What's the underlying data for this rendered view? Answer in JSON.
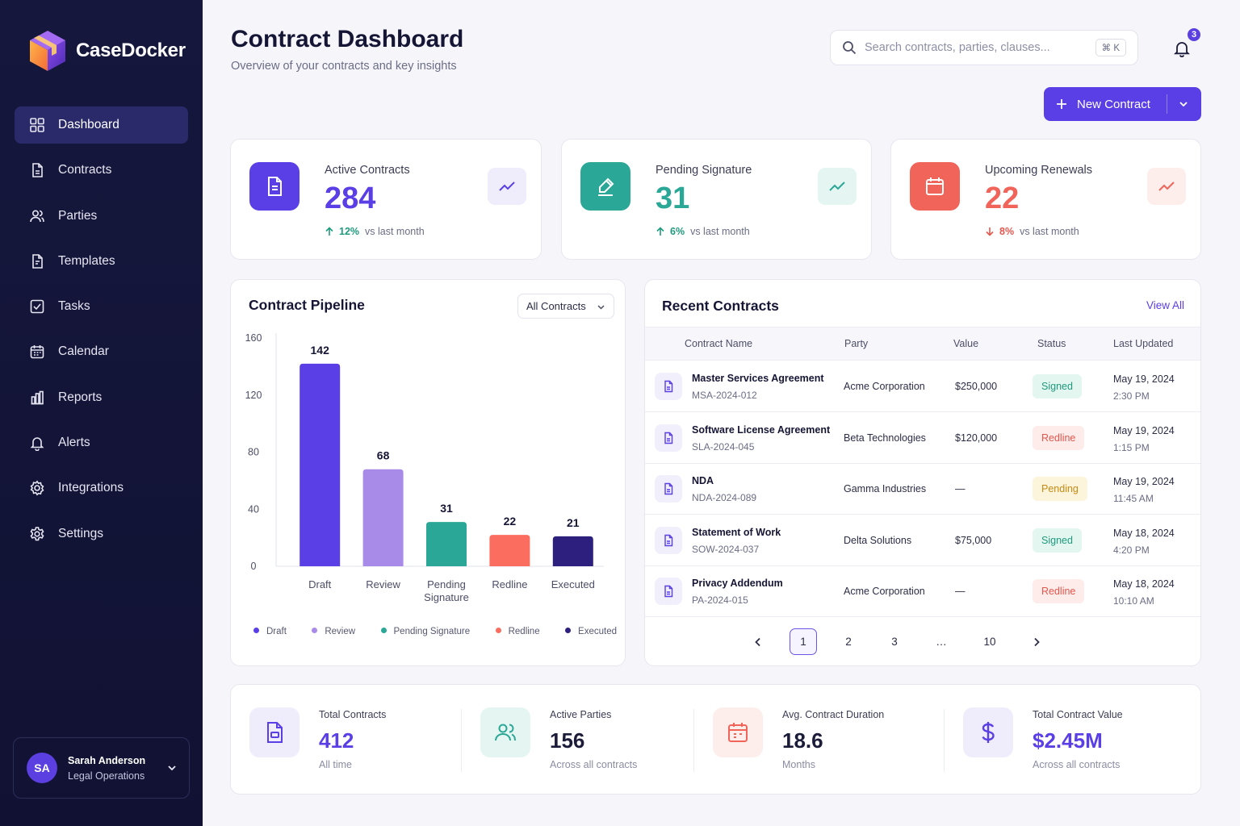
{
  "brand": {
    "name": "CaseDocker"
  },
  "sidebar": {
    "items": [
      {
        "label": "Dashboard",
        "icon": "grid-icon",
        "active": true
      },
      {
        "label": "Contracts",
        "icon": "document-icon"
      },
      {
        "label": "Parties",
        "icon": "users-icon"
      },
      {
        "label": "Templates",
        "icon": "template-icon"
      },
      {
        "label": "Tasks",
        "icon": "checkbox-icon"
      },
      {
        "label": "Calendar",
        "icon": "calendar-icon"
      },
      {
        "label": "Reports",
        "icon": "reports-icon"
      },
      {
        "label": "Alerts",
        "icon": "bell-icon"
      },
      {
        "label": "Integrations",
        "icon": "integrations-icon"
      },
      {
        "label": "Settings",
        "icon": "gear-icon"
      }
    ]
  },
  "user": {
    "initials": "SA",
    "name": "Sarah Anderson",
    "role": "Legal Operations"
  },
  "header": {
    "title": "Contract Dashboard",
    "subtitle": "Overview of your contracts and key insights",
    "search_placeholder": "Search contracts, parties, clauses...",
    "search_shortcut": "⌘ K",
    "notification_count": "3",
    "new_button_label": "New Contract"
  },
  "stats": [
    {
      "label": "Active Contracts",
      "value": "284",
      "delta": "12%",
      "delta_direction": "up",
      "delta_text": "vs last month",
      "color": "#5a3ee6"
    },
    {
      "label": "Pending Signature",
      "value": "31",
      "delta": "6%",
      "delta_direction": "up",
      "delta_text": "vs last month",
      "color": "#2aa796"
    },
    {
      "label": "Upcoming Renewals",
      "value": "22",
      "delta": "8%",
      "delta_direction": "down",
      "delta_text": "vs last month",
      "color": "#f0645a"
    }
  ],
  "pipeline": {
    "title": "Contract Pipeline",
    "filter": "All Contracts"
  },
  "chart_data": {
    "type": "bar",
    "title": "Contract Pipeline",
    "categories": [
      "Draft",
      "Review",
      "Pending Signature",
      "Redline",
      "Executed"
    ],
    "values": [
      142,
      68,
      31,
      22,
      21
    ],
    "colors": [
      "#5a3ee6",
      "#a88be8",
      "#2aa796",
      "#fb6d5e",
      "#2c1f7e"
    ],
    "yticks": [
      0,
      40,
      80,
      120,
      160
    ],
    "ylim": [
      0,
      160
    ],
    "legend": [
      "Draft",
      "Review",
      "Pending Signature",
      "Redline",
      "Executed"
    ],
    "legend_position": "bottom",
    "grid": false
  },
  "recent": {
    "title": "Recent Contracts",
    "view_all": "View All",
    "columns": [
      "Contract Name",
      "Party",
      "Value",
      "Status",
      "Last Updated"
    ],
    "rows": [
      {
        "name": "Master Services Agreement",
        "code": "MSA-2024-012",
        "party": "Acme Corporation",
        "value": "$250,000",
        "status": "Signed",
        "date": "May 19, 2024",
        "time": "2:30 PM"
      },
      {
        "name": "Software License Agreement",
        "code": "SLA-2024-045",
        "party": "Beta Technologies",
        "value": "$120,000",
        "status": "Redline",
        "date": "May 19, 2024",
        "time": "1:15 PM"
      },
      {
        "name": "NDA",
        "code": "NDA-2024-089",
        "party": "Gamma Industries",
        "value": "—",
        "status": "Pending",
        "date": "May 19, 2024",
        "time": "11:45 AM"
      },
      {
        "name": "Statement of Work",
        "code": "SOW-2024-037",
        "party": "Delta Solutions",
        "value": "$75,000",
        "status": "Signed",
        "date": "May 18, 2024",
        "time": "4:20 PM"
      },
      {
        "name": "Privacy Addendum",
        "code": "PA-2024-015",
        "party": "Acme Corporation",
        "value": "—",
        "status": "Redline",
        "date": "May 18, 2024",
        "time": "10:10 AM"
      }
    ],
    "status_colors": {
      "Signed": {
        "bg": "#e3f6f0",
        "fg": "#1e9a7c"
      },
      "Redline": {
        "bg": "#fdecea",
        "fg": "#e4574d"
      },
      "Pending": {
        "bg": "#fdf4dc",
        "fg": "#c68b12"
      }
    },
    "pagination": {
      "pages": [
        "1",
        "2",
        "3",
        "…",
        "10"
      ],
      "current": "1"
    }
  },
  "summary": [
    {
      "label": "Total Contracts",
      "value": "412",
      "sub": "All time",
      "icon": "file-icon",
      "color": "#5a3ee6"
    },
    {
      "label": "Active Parties",
      "value": "156",
      "sub": "Across all contracts",
      "icon": "users-icon",
      "color": "#2aa796"
    },
    {
      "label": "Avg. Contract Duration",
      "value": "18.6",
      "sub": "Months",
      "icon": "calendar-icon",
      "color": "#f0645a"
    },
    {
      "label": "Total Contract Value",
      "value": "$2.45M",
      "sub": "Across all contracts",
      "icon": "dollar-icon",
      "color": "#5a3ee6"
    }
  ]
}
